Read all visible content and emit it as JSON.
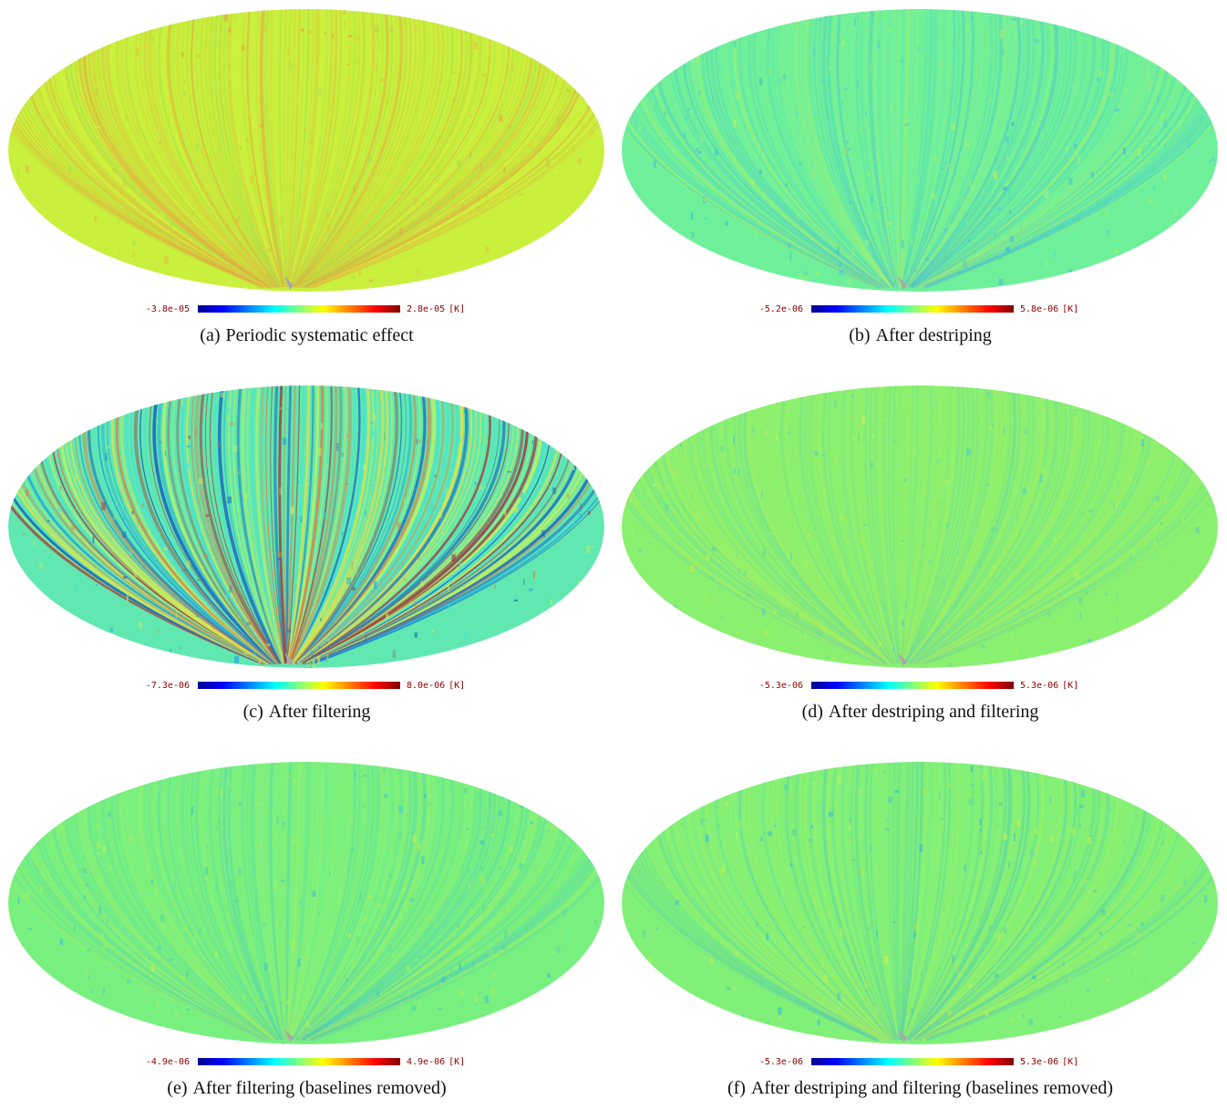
{
  "colors": {
    "colormap": [
      "#00008f",
      "#0000ff",
      "#00ffff",
      "#7fff7f",
      "#ffff00",
      "#ff0000",
      "#800000"
    ],
    "label_text": "#8b0000"
  },
  "panels": [
    {
      "id": "a",
      "label": "(a)",
      "caption": "Periodic systematic effect",
      "vmin": "-3.8e-05",
      "vmax": "2.8e-05",
      "unit": "[K]",
      "base_color": "#c8f03c",
      "stripe_colors": [
        "#e0c040",
        "#e8a040",
        "#a0e050",
        "#d8f040",
        "#c0d040"
      ],
      "stripe_strength": 0.55
    },
    {
      "id": "b",
      "label": "(b)",
      "caption": "After destriping",
      "vmin": "-5.2e-06",
      "vmax": "5.8e-06",
      "unit": "[K]",
      "base_color": "#6ef09a",
      "stripe_colors": [
        "#3ec8d8",
        "#40b0e8",
        "#9af080",
        "#c8f050"
      ],
      "stripe_strength": 0.35
    },
    {
      "id": "c",
      "label": "(c)",
      "caption": "After filtering",
      "vmin": "-7.3e-06",
      "vmax": "8.0e-06",
      "unit": "[K]",
      "base_color": "#60e8b0",
      "stripe_colors": [
        "#20a0e0",
        "#1860c0",
        "#f0e040",
        "#e08040",
        "#40e0e0",
        "#c0f060",
        "#a04040"
      ],
      "stripe_strength": 0.9
    },
    {
      "id": "d",
      "label": "(d)",
      "caption": "After destriping and filtering",
      "vmin": "-5.3e-06",
      "vmax": "5.3e-06",
      "unit": "[K]",
      "base_color": "#8af070",
      "stripe_colors": [
        "#60d8a0",
        "#c8f050",
        "#50c8c8",
        "#b0f060"
      ],
      "stripe_strength": 0.3
    },
    {
      "id": "e",
      "label": "(e)",
      "caption": "After filtering (baselines removed)",
      "vmin": "-4.9e-06",
      "vmax": "4.9e-06",
      "unit": "[K]",
      "base_color": "#78f080",
      "stripe_colors": [
        "#50d0b0",
        "#c0f050",
        "#40c0d0",
        "#a8f060"
      ],
      "stripe_strength": 0.3
    },
    {
      "id": "f",
      "label": "(f)",
      "caption": "After destriping and filtering (baselines removed)",
      "vmin": "-5.3e-06",
      "vmax": "5.3e-06",
      "unit": "[K]",
      "base_color": "#80f078",
      "stripe_colors": [
        "#50c8b8",
        "#c8f050",
        "#3cb8d8",
        "#a8f060"
      ],
      "stripe_strength": 0.32
    }
  ]
}
